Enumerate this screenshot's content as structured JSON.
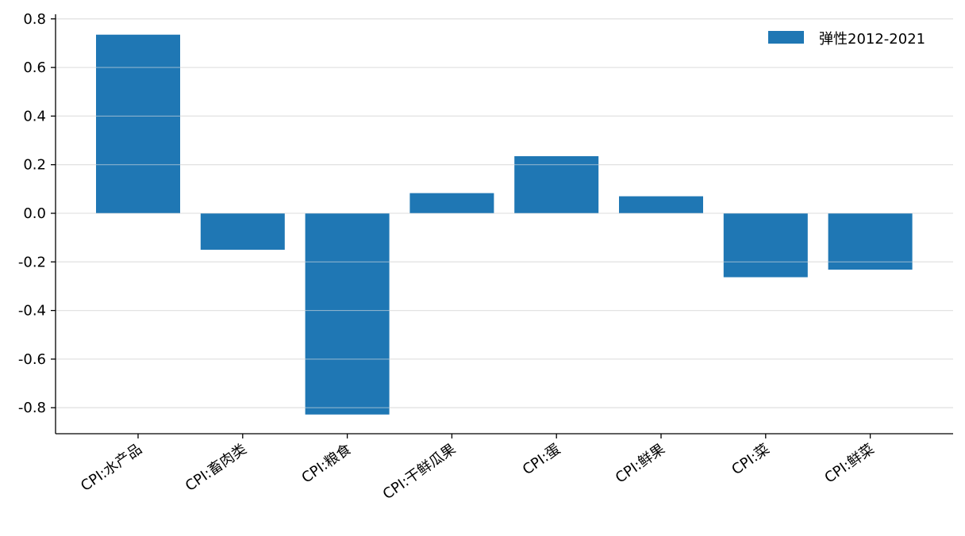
{
  "chart_data": {
    "type": "bar",
    "categories": [
      "CPI:水产品",
      "CPI:畜肉类",
      "CPI:粮食",
      "CPI:干鲜瓜果",
      "CPI:蛋",
      "CPI:鲜果",
      "CPI:菜",
      "CPI:鲜菜"
    ],
    "series": [
      {
        "name": "弹性2012-2021",
        "values": [
          0.735,
          -0.15,
          -0.828,
          0.083,
          0.235,
          0.07,
          -0.263,
          -0.232
        ]
      }
    ],
    "y_ticks": [
      0.8,
      0.6,
      0.4,
      0.2,
      0.0,
      -0.2,
      -0.4,
      -0.6,
      -0.8
    ],
    "y_tick_labels": [
      "0.8",
      "0.6",
      "0.4",
      "0.2",
      "0.0",
      "-0.2",
      "-0.4",
      "-0.6",
      "-0.8"
    ],
    "ylim": [
      -0.9,
      0.81
    ],
    "grid": "horizontal",
    "legend_position": "top-right",
    "bar_color": "#1f77b4",
    "grid_color": "#e3e3e3",
    "xlabel": "",
    "ylabel": "",
    "title": ""
  }
}
